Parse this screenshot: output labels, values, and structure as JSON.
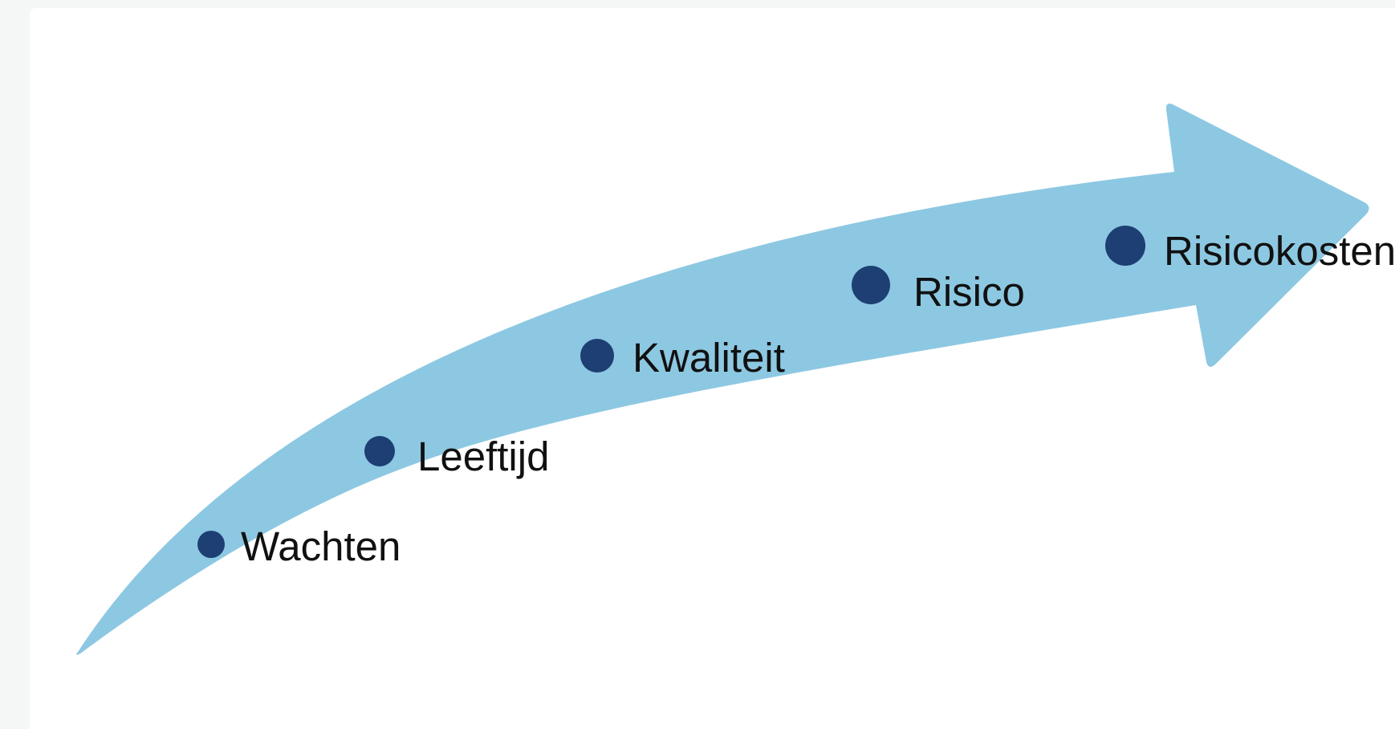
{
  "diagram": {
    "colors": {
      "arrow": "#8dc8e2",
      "dot": "#1e3f73",
      "text": "#111111",
      "background": "#f5f7f6",
      "card": "#ffffff"
    },
    "steps": [
      {
        "label": "Wachten"
      },
      {
        "label": "Leeftijd"
      },
      {
        "label": "Kwaliteit"
      },
      {
        "label": "Risico"
      },
      {
        "label": "Risicokosten"
      }
    ]
  }
}
